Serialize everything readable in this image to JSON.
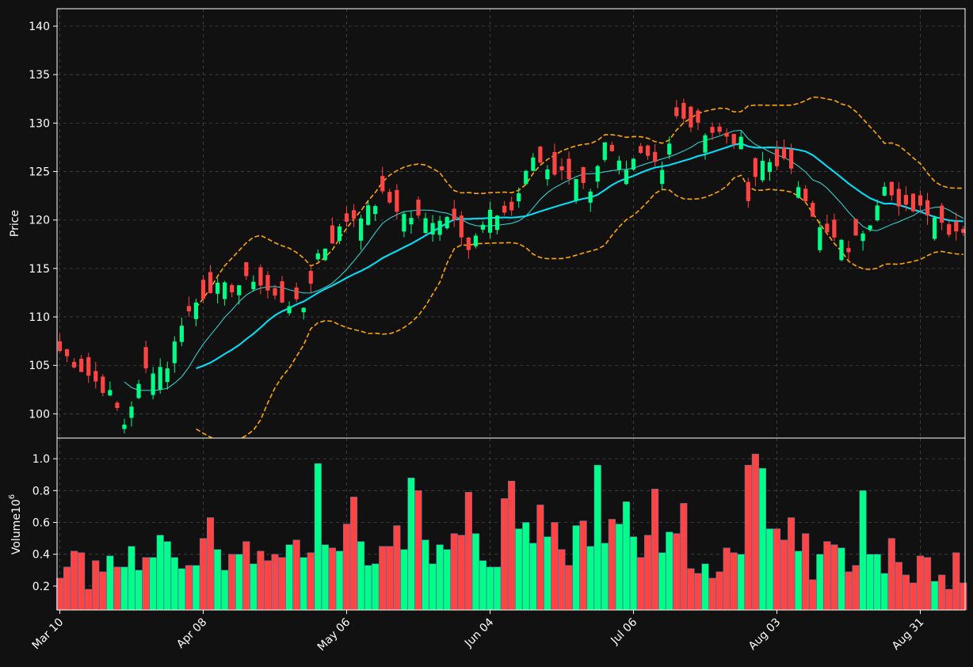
{
  "chart_data": {
    "type": "candlestick",
    "price_panel": {
      "ylabel": "Price",
      "ylim": [
        97.5,
        141.8
      ],
      "yticks": [
        100,
        105,
        110,
        115,
        120,
        125,
        130,
        135,
        140
      ],
      "grid": true
    },
    "volume_panel": {
      "ylabel": "Volume",
      "ylabel_exponent": "10",
      "ylabel_exponent_power": "6",
      "ylim": [
        0.05,
        1.13
      ],
      "yticks": [
        0.2,
        0.4,
        0.6,
        0.8,
        1.0
      ],
      "grid": true
    },
    "x_axis": {
      "tick_labels": [
        "Mar 10",
        "Apr 08",
        "May 06",
        "Jun 04",
        "Jul 06",
        "Aug 03",
        "Aug 31"
      ],
      "tick_index": [
        0,
        20,
        40,
        60,
        80,
        100,
        120
      ]
    },
    "colors": {
      "up": "#00ff88",
      "down": "#ff4444",
      "sma_short": "#33dddd",
      "sma_long": "#00e5ff",
      "bands": "#ffa500",
      "background": "#111111",
      "grid": "#444444"
    },
    "ohlc_anchors": [
      [
        0,
        106.5
      ],
      [
        4,
        104.0
      ],
      [
        7,
        102.0
      ],
      [
        9,
        99.0
      ],
      [
        10,
        101.0
      ],
      [
        12,
        104.5
      ],
      [
        15,
        105.0
      ],
      [
        17,
        109.5
      ],
      [
        19,
        111.5
      ],
      [
        21,
        113.0
      ],
      [
        24,
        113.0
      ],
      [
        27,
        114.0
      ],
      [
        30,
        112.0
      ],
      [
        34,
        111.0
      ],
      [
        36,
        116.5
      ],
      [
        38,
        118.0
      ],
      [
        40,
        120.0
      ],
      [
        43,
        121.0
      ],
      [
        45,
        122.5
      ],
      [
        48,
        120.5
      ],
      [
        51,
        120.0
      ],
      [
        55,
        120.5
      ],
      [
        57,
        117.0
      ],
      [
        60,
        120.5
      ],
      [
        63,
        121.0
      ],
      [
        66,
        126.5
      ],
      [
        69,
        125.0
      ],
      [
        72,
        124.5
      ],
      [
        74,
        122.5
      ],
      [
        76,
        127.5
      ],
      [
        79,
        125.0
      ],
      [
        81,
        127.5
      ],
      [
        84,
        125.5
      ],
      [
        86,
        130.5
      ],
      [
        89,
        129.5
      ],
      [
        92,
        129.0
      ],
      [
        95,
        128.0
      ],
      [
        96,
        122.0
      ],
      [
        98,
        126.0
      ],
      [
        101,
        126.0
      ],
      [
        104,
        122.5
      ],
      [
        106,
        119.0
      ],
      [
        110,
        117.0
      ],
      [
        113,
        120.0
      ],
      [
        115,
        124.0
      ],
      [
        117,
        121.0
      ],
      [
        120,
        121.5
      ],
      [
        122,
        120.5
      ],
      [
        124,
        119.0
      ]
    ],
    "volume_values": [
      0.25,
      0.32,
      0.42,
      0.41,
      0.18,
      0.36,
      0.29,
      0.39,
      0.32,
      0.32,
      0.45,
      0.3,
      0.38,
      0.38,
      0.52,
      0.48,
      0.38,
      0.31,
      0.33,
      0.33,
      0.5,
      0.63,
      0.43,
      0.3,
      0.4,
      0.4,
      0.48,
      0.34,
      0.42,
      0.36,
      0.4,
      0.38,
      0.46,
      0.49,
      0.38,
      0.41,
      0.97,
      0.46,
      0.44,
      0.42,
      0.59,
      0.76,
      0.48,
      0.33,
      0.34,
      0.45,
      0.45,
      0.58,
      0.43,
      0.88,
      0.8,
      0.49,
      0.34,
      0.46,
      0.43,
      0.53,
      0.52,
      0.79,
      0.53,
      0.36,
      0.32,
      0.32,
      0.75,
      0.86,
      0.56,
      0.6,
      0.47,
      0.71,
      0.51,
      0.6,
      0.43,
      0.33,
      0.58,
      0.61,
      0.45,
      0.96,
      0.47,
      0.62,
      0.59,
      0.73,
      0.51,
      0.38,
      0.52,
      0.81,
      0.41,
      0.54,
      0.53,
      0.72,
      0.31,
      0.28,
      0.34,
      0.25,
      0.29,
      0.44,
      0.41,
      0.4,
      0.96,
      1.03,
      0.94,
      0.56,
      0.56,
      0.49,
      0.63,
      0.42,
      0.53,
      0.24,
      0.4,
      0.48,
      0.46,
      0.44,
      0.29,
      0.33,
      0.8,
      0.4,
      0.4,
      0.28,
      0.5,
      0.35,
      0.27,
      0.22,
      0.39,
      0.38,
      0.23,
      0.27,
      0.18,
      0.41,
      0.22
    ],
    "volume_direction": [
      "down",
      "down",
      "down",
      "down",
      "down",
      "down",
      "down",
      "up",
      "down",
      "up",
      "up",
      "up",
      "down",
      "up",
      "up",
      "up",
      "up",
      "up",
      "down",
      "up",
      "down",
      "down",
      "up",
      "up",
      "down",
      "up",
      "down",
      "up",
      "down",
      "down",
      "down",
      "down",
      "up",
      "down",
      "up",
      "down",
      "up",
      "up",
      "down",
      "up",
      "down",
      "down",
      "up",
      "up",
      "up",
      "down",
      "down",
      "down",
      "up",
      "up",
      "down",
      "up",
      "up",
      "up",
      "up",
      "down",
      "down",
      "down",
      "up",
      "up",
      "up",
      "up",
      "down",
      "down",
      "up",
      "up",
      "up",
      "down",
      "up",
      "down",
      "down",
      "down",
      "up",
      "down",
      "up",
      "up",
      "up",
      "down",
      "up",
      "up",
      "up",
      "down",
      "down",
      "down",
      "up",
      "up",
      "down",
      "down",
      "down",
      "down",
      "up",
      "down",
      "down",
      "down",
      "down",
      "up",
      "down",
      "down",
      "up",
      "up",
      "down",
      "down",
      "down",
      "up",
      "down",
      "down",
      "up",
      "down",
      "down",
      "up",
      "down",
      "down",
      "up",
      "up",
      "up",
      "up",
      "down",
      "down",
      "down",
      "down",
      "down",
      "down",
      "up",
      "down",
      "down",
      "down",
      "down"
    ]
  }
}
